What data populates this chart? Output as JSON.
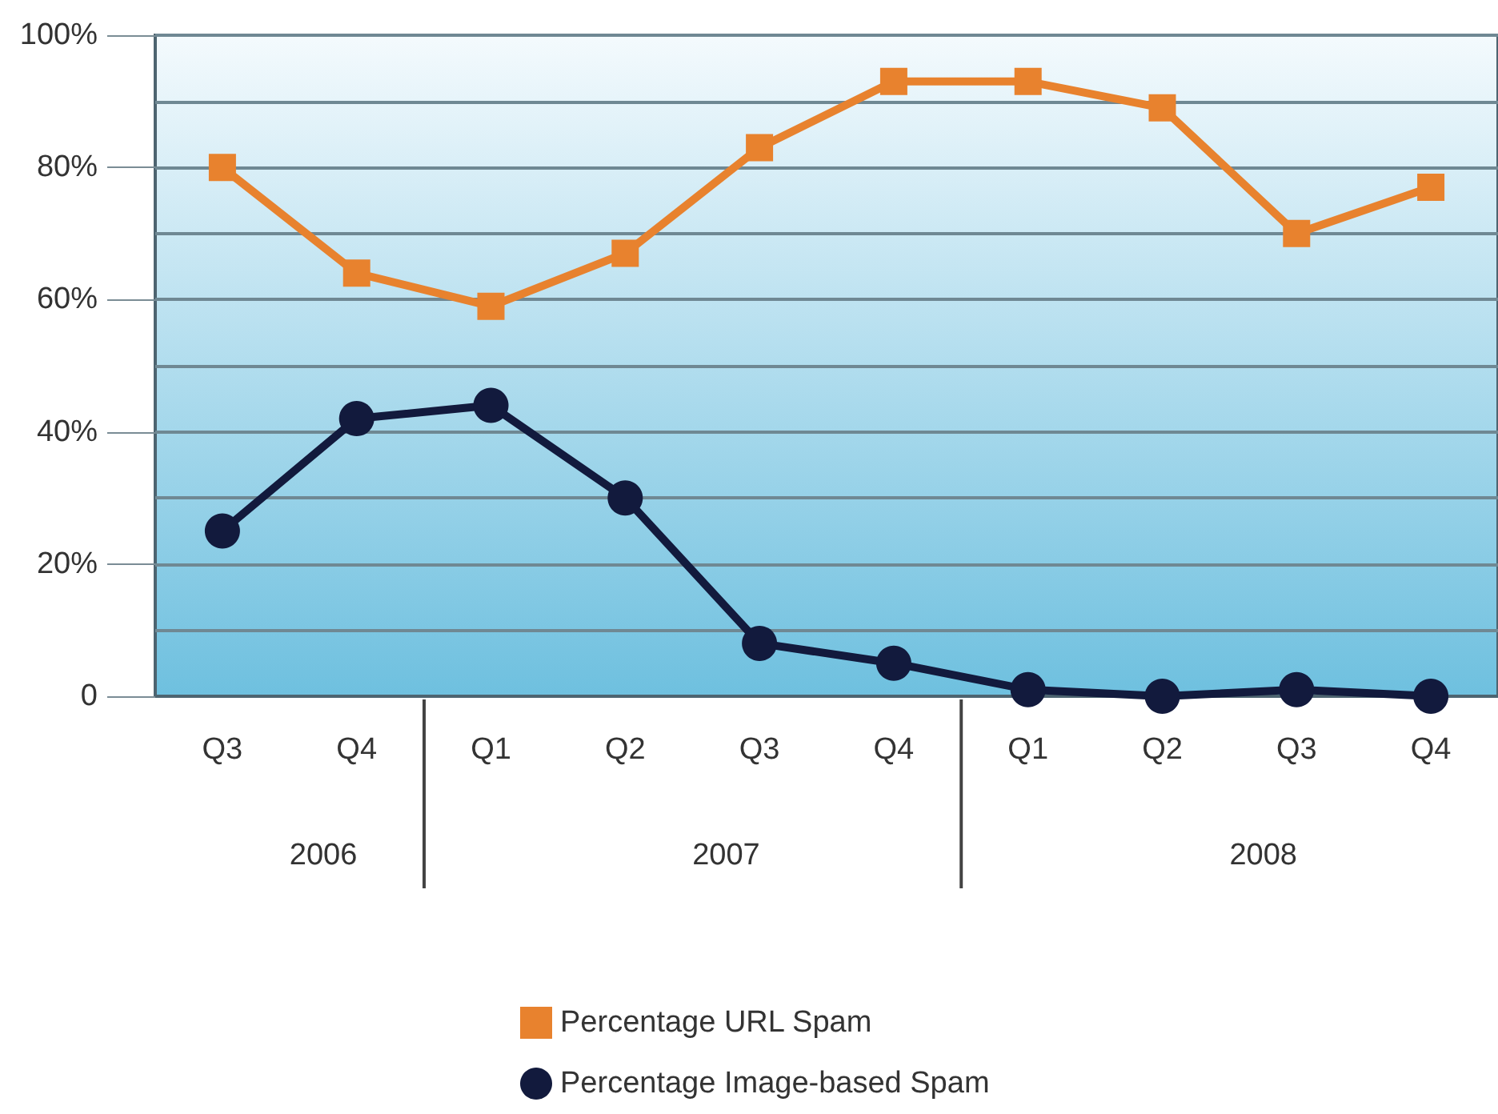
{
  "chart_data": {
    "type": "line",
    "categories": [
      "Q3",
      "Q4",
      "Q1",
      "Q2",
      "Q3",
      "Q4",
      "Q1",
      "Q2",
      "Q3",
      "Q4"
    ],
    "series": [
      {
        "name": "Percentage URL Spam",
        "color": "#e8822e",
        "marker": "square",
        "values": [
          80,
          64,
          59,
          67,
          83,
          93,
          93,
          89,
          70,
          77
        ]
      },
      {
        "name": "Percentage Image-based Spam",
        "color": "#121a3d",
        "marker": "circle",
        "values": [
          25,
          42,
          44,
          30,
          8,
          5,
          1,
          0,
          1,
          0
        ]
      }
    ],
    "ylim": [
      0,
      100
    ],
    "yticks": [
      0,
      {
        "value": 20,
        "label": "20%"
      },
      {
        "value": 40,
        "label": "40%"
      },
      {
        "value": 60,
        "label": "60%"
      },
      {
        "value": 80,
        "label": "80%"
      },
      {
        "value": 100,
        "label": "100%"
      }
    ],
    "annotations": [
      "2006",
      "2007",
      "2008"
    ],
    "grid": true,
    "legend": "bottom",
    "line_style": "solid"
  }
}
